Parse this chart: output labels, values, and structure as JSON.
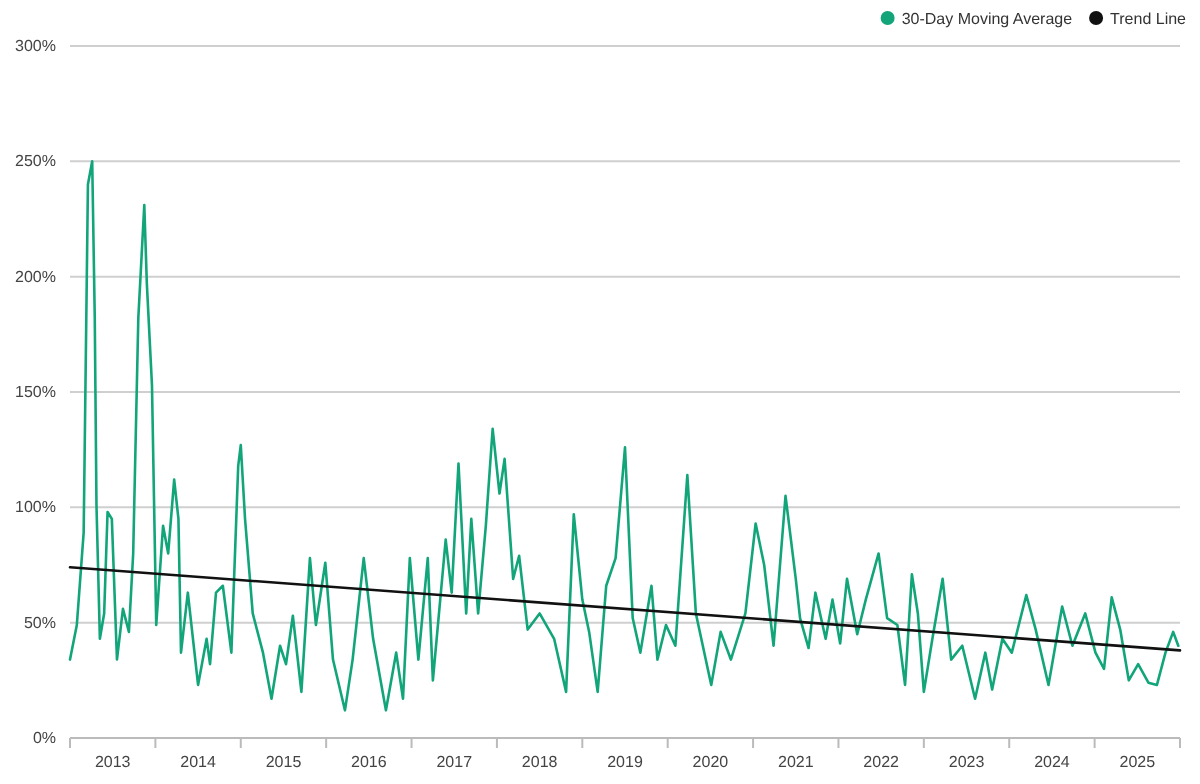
{
  "chart_data": {
    "type": "line",
    "legend": "top right",
    "grid": "y",
    "marker": "none",
    "line_style": "solid",
    "xlim": [
      2013,
      2026
    ],
    "xticks": [
      {
        "value": 2013,
        "label": null
      },
      {
        "value": 2013.5,
        "label": "2013"
      },
      {
        "value": 2014,
        "label": null
      },
      {
        "value": 2014.5,
        "label": "2014"
      },
      {
        "value": 2015,
        "label": null
      },
      {
        "value": 2015.5,
        "label": "2015"
      },
      {
        "value": 2016,
        "label": null
      },
      {
        "value": 2016.5,
        "label": "2016"
      },
      {
        "value": 2017,
        "label": null
      },
      {
        "value": 2017.5,
        "label": "2017"
      },
      {
        "value": 2018,
        "label": null
      },
      {
        "value": 2018.5,
        "label": "2018"
      },
      {
        "value": 2019,
        "label": null
      },
      {
        "value": 2019.5,
        "label": "2019"
      },
      {
        "value": 2020,
        "label": null
      },
      {
        "value": 2020.5,
        "label": "2020"
      },
      {
        "value": 2021,
        "label": null
      },
      {
        "value": 2021.5,
        "label": "2021"
      },
      {
        "value": 2022,
        "label": null
      },
      {
        "value": 2022.5,
        "label": "2022"
      },
      {
        "value": 2023,
        "label": null
      },
      {
        "value": 2023.5,
        "label": "2023"
      },
      {
        "value": 2024,
        "label": null
      },
      {
        "value": 2024.5,
        "label": "2024"
      },
      {
        "value": 2025,
        "label": null
      },
      {
        "value": 2025.5,
        "label": "2025"
      },
      {
        "value": 2026,
        "label": null
      }
    ],
    "ylim": [
      0,
      300
    ],
    "yticks": [
      {
        "value": 0,
        "label": "0%"
      },
      {
        "value": 50,
        "label": "50%"
      },
      {
        "value": 100,
        "label": "100%"
      },
      {
        "value": 150,
        "label": "150%"
      },
      {
        "value": 200,
        "label": "200%"
      },
      {
        "value": 250,
        "label": "250%"
      },
      {
        "value": 300,
        "label": "300%"
      }
    ],
    "series": [
      {
        "name": "30-Day Moving Average",
        "color": "#12a57a",
        "x": [
          2013.0,
          2013.08,
          2013.16,
          2013.21,
          2013.26,
          2013.29,
          2013.31,
          2013.35,
          2013.4,
          2013.44,
          2013.49,
          2013.55,
          2013.62,
          2013.69,
          2013.74,
          2013.8,
          2013.87,
          2013.9,
          2013.96,
          2014.01,
          2014.09,
          2014.15,
          2014.22,
          2014.27,
          2014.3,
          2014.38,
          2014.5,
          2014.6,
          2014.64,
          2014.71,
          2014.79,
          2014.89,
          2014.97,
          2015.0,
          2015.05,
          2015.14,
          2015.26,
          2015.36,
          2015.46,
          2015.53,
          2015.61,
          2015.71,
          2015.81,
          2015.88,
          2015.99,
          2016.08,
          2016.22,
          2016.31,
          2016.44,
          2016.55,
          2016.7,
          2016.82,
          2016.9,
          2016.98,
          2017.08,
          2017.19,
          2017.25,
          2017.4,
          2017.47,
          2017.55,
          2017.64,
          2017.7,
          2017.78,
          2017.87,
          2017.95,
          2018.03,
          2018.09,
          2018.19,
          2018.26,
          2018.36,
          2018.5,
          2018.67,
          2018.81,
          2018.9,
          2019.0,
          2019.08,
          2019.18,
          2019.28,
          2019.39,
          2019.5,
          2019.59,
          2019.68,
          2019.81,
          2019.88,
          2019.98,
          2020.09,
          2020.23,
          2020.33,
          2020.51,
          2020.62,
          2020.74,
          2020.91,
          2021.03,
          2021.13,
          2021.24,
          2021.38,
          2021.5,
          2021.55,
          2021.65,
          2021.73,
          2021.85,
          2021.93,
          2022.02,
          2022.1,
          2022.22,
          2022.32,
          2022.47,
          2022.57,
          2022.69,
          2022.78,
          2022.86,
          2022.93,
          2023.0,
          2023.1,
          2023.22,
          2023.32,
          2023.45,
          2023.6,
          2023.72,
          2023.8,
          2023.92,
          2024.03,
          2024.2,
          2024.31,
          2024.46,
          2024.62,
          2024.74,
          2024.89,
          2025.01,
          2025.11,
          2025.2,
          2025.3,
          2025.4,
          2025.51,
          2025.63,
          2025.73,
          2025.83,
          2025.92,
          2025.98
        ],
        "values": [
          34,
          49,
          89,
          240,
          250,
          182,
          101,
          43,
          54,
          98,
          95,
          34,
          56,
          46,
          80,
          182,
          231,
          197,
          153,
          49,
          92,
          80,
          112,
          95,
          37,
          63,
          23,
          43,
          32,
          63,
          66,
          37,
          118,
          127,
          95,
          54,
          37,
          17,
          40,
          32,
          53,
          20,
          78,
          49,
          76,
          34,
          12,
          34,
          78,
          43,
          12,
          37,
          17,
          78,
          34,
          78,
          25,
          86,
          63,
          119,
          54,
          95,
          54,
          92,
          134,
          106,
          121,
          69,
          79,
          47,
          54,
          43,
          20,
          97,
          60,
          46,
          20,
          66,
          78,
          126,
          52,
          37,
          66,
          34,
          49,
          40,
          114,
          54,
          23,
          46,
          34,
          54,
          93,
          75,
          40,
          105,
          69,
          52,
          39,
          63,
          43,
          60,
          41,
          69,
          45,
          60,
          80,
          52,
          49,
          23,
          71,
          54,
          20,
          43,
          69,
          34,
          40,
          17,
          37,
          21,
          43,
          37,
          62,
          47,
          23,
          57,
          40,
          54,
          37,
          30,
          61,
          47,
          25,
          32,
          24,
          23,
          37,
          46,
          40
        ]
      },
      {
        "name": "Trend Line",
        "color": "#111111",
        "x": [
          2013,
          2026
        ],
        "values": [
          74,
          38
        ]
      }
    ]
  }
}
